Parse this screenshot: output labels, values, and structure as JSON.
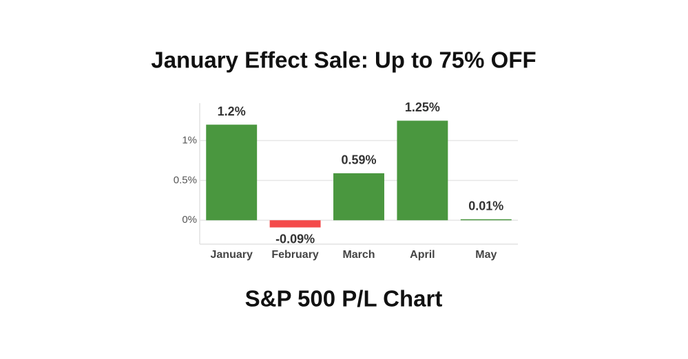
{
  "chart_data": {
    "type": "bar",
    "title": "January Effect Sale: Up to 75% OFF",
    "subtitle": "S&P 500 P/L Chart",
    "categories": [
      "January",
      "February",
      "March",
      "April",
      "May"
    ],
    "values": [
      1.2,
      -0.09,
      0.59,
      1.25,
      0.01
    ],
    "value_labels": [
      "1.2%",
      "-0.09%",
      "0.59%",
      "1.25%",
      "0.01%"
    ],
    "colors": [
      "#4a973f",
      "#f44a4a",
      "#4a973f",
      "#4a973f",
      "#4a973f"
    ],
    "ylim": [
      -0.3,
      1.47
    ],
    "yticks": [
      {
        "value": 0,
        "label": "0%"
      },
      {
        "value": 0.5,
        "label": "0.5%"
      },
      {
        "value": 1,
        "label": "1%"
      }
    ],
    "grid": true
  }
}
